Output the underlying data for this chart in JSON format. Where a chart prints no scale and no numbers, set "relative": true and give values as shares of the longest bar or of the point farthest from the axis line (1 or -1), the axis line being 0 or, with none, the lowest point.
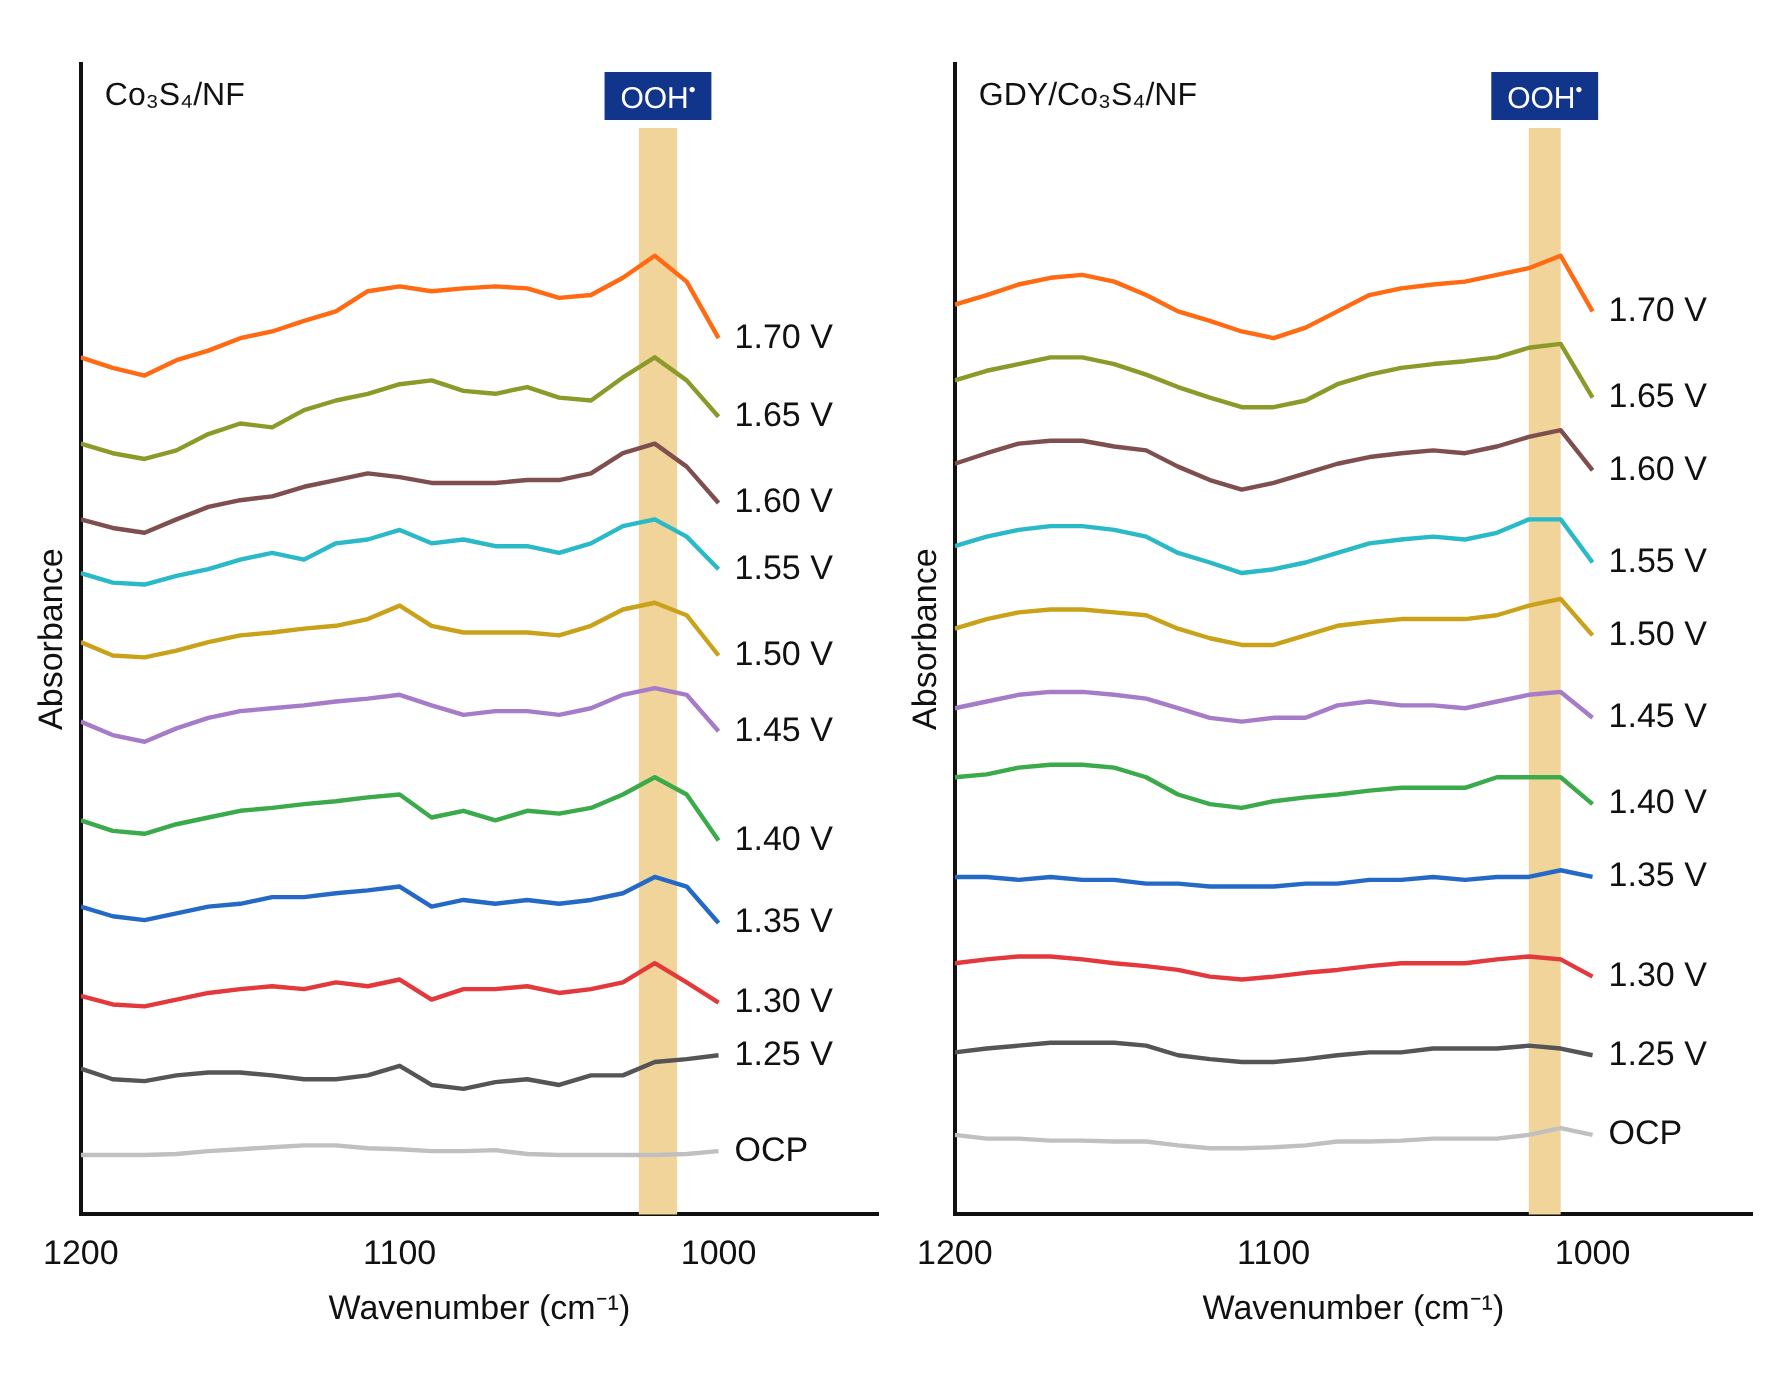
{
  "chart_data": [
    {
      "type": "line",
      "title": "Co₃S₄/NF",
      "xlabel": "Wavenumber (cm⁻¹)",
      "ylabel": "Absorbance",
      "relative": true,
      "xlim": [
        1200,
        950
      ],
      "xticks": [
        1200,
        1100,
        1000
      ],
      "grid": false,
      "legend": false,
      "marker": "none",
      "line_style": "solid",
      "bands": [
        {
          "axis": "x",
          "from": 1025,
          "to": 1013,
          "label": "OOH$^{•}$",
          "color": "#f0d49a"
        }
      ],
      "x": [
        1200,
        1190,
        1180,
        1170,
        1160,
        1150,
        1140,
        1130,
        1120,
        1110,
        1100,
        1090,
        1080,
        1070,
        1060,
        1050,
        1040,
        1030,
        1020,
        1010,
        1000
      ],
      "series": [
        {
          "name": "1.70 V",
          "color": "#ff6a13",
          "values": [
            0.894,
            0.883,
            0.875,
            0.891,
            0.901,
            0.914,
            0.921,
            0.932,
            0.942,
            0.963,
            0.968,
            0.963,
            0.966,
            0.968,
            0.966,
            0.956,
            0.959,
            0.977,
            1.0,
            0.973,
            0.914
          ]
        },
        {
          "name": "1.65 V",
          "color": "#8c9a2a",
          "values": [
            0.804,
            0.794,
            0.788,
            0.797,
            0.814,
            0.825,
            0.821,
            0.839,
            0.849,
            0.856,
            0.866,
            0.87,
            0.859,
            0.856,
            0.863,
            0.852,
            0.849,
            0.873,
            0.894,
            0.87,
            0.832
          ]
        },
        {
          "name": "1.60 V",
          "color": "#7f4f4f",
          "values": [
            0.725,
            0.716,
            0.711,
            0.725,
            0.738,
            0.745,
            0.749,
            0.759,
            0.766,
            0.773,
            0.769,
            0.763,
            0.763,
            0.763,
            0.766,
            0.766,
            0.773,
            0.794,
            0.804,
            0.78,
            0.742
          ]
        },
        {
          "name": "1.55 V",
          "color": "#2ab9c6",
          "values": [
            0.669,
            0.659,
            0.657,
            0.666,
            0.673,
            0.683,
            0.69,
            0.683,
            0.7,
            0.704,
            0.714,
            0.7,
            0.704,
            0.697,
            0.697,
            0.69,
            0.7,
            0.718,
            0.725,
            0.707,
            0.673
          ]
        },
        {
          "name": "1.50 V",
          "color": "#c9a21a",
          "values": [
            0.597,
            0.583,
            0.581,
            0.588,
            0.597,
            0.604,
            0.607,
            0.611,
            0.614,
            0.621,
            0.635,
            0.614,
            0.607,
            0.607,
            0.607,
            0.604,
            0.614,
            0.631,
            0.638,
            0.625,
            0.583
          ]
        },
        {
          "name": "1.45 V",
          "color": "#a67cc9",
          "values": [
            0.514,
            0.5,
            0.493,
            0.507,
            0.518,
            0.525,
            0.528,
            0.531,
            0.535,
            0.538,
            0.542,
            0.531,
            0.521,
            0.525,
            0.525,
            0.521,
            0.528,
            0.542,
            0.549,
            0.542,
            0.504
          ]
        },
        {
          "name": "1.40 V",
          "color": "#3aaa4a",
          "values": [
            0.411,
            0.4,
            0.397,
            0.407,
            0.414,
            0.421,
            0.424,
            0.428,
            0.431,
            0.435,
            0.438,
            0.414,
            0.421,
            0.411,
            0.421,
            0.418,
            0.424,
            0.438,
            0.456,
            0.438,
            0.39
          ]
        },
        {
          "name": "1.35 V",
          "color": "#2569c7",
          "values": [
            0.321,
            0.311,
            0.307,
            0.314,
            0.321,
            0.324,
            0.331,
            0.331,
            0.335,
            0.338,
            0.342,
            0.321,
            0.328,
            0.324,
            0.328,
            0.324,
            0.328,
            0.335,
            0.352,
            0.342,
            0.304
          ]
        },
        {
          "name": "1.30 V",
          "color": "#e4393c",
          "values": [
            0.228,
            0.219,
            0.217,
            0.224,
            0.231,
            0.235,
            0.238,
            0.235,
            0.242,
            0.238,
            0.245,
            0.224,
            0.235,
            0.235,
            0.238,
            0.231,
            0.235,
            0.242,
            0.262,
            0.242,
            0.221
          ]
        },
        {
          "name": "1.25 V",
          "color": "#555555",
          "values": [
            0.152,
            0.141,
            0.139,
            0.145,
            0.148,
            0.148,
            0.145,
            0.141,
            0.141,
            0.145,
            0.155,
            0.135,
            0.131,
            0.138,
            0.141,
            0.135,
            0.145,
            0.145,
            0.159,
            0.162,
            0.166
          ]
        },
        {
          "name": "OCP",
          "color": "#c0c0c0",
          "values": [
            0.062,
            0.062,
            0.062,
            0.063,
            0.066,
            0.068,
            0.07,
            0.072,
            0.072,
            0.069,
            0.068,
            0.066,
            0.066,
            0.067,
            0.063,
            0.062,
            0.062,
            0.062,
            0.062,
            0.063,
            0.066
          ]
        }
      ]
    },
    {
      "type": "line",
      "title": "GDY/Co₃S₄/NF",
      "xlabel": "Wavenumber (cm⁻¹)",
      "ylabel": "Absorbance",
      "relative": true,
      "xlim": [
        1200,
        950
      ],
      "xticks": [
        1200,
        1100,
        1000
      ],
      "grid": false,
      "legend": false,
      "marker": "none",
      "line_style": "solid",
      "bands": [
        {
          "axis": "x",
          "from": 1020,
          "to": 1010,
          "label": "OOH$^{•}$",
          "color": "#f0d49a"
        }
      ],
      "x": [
        1200,
        1190,
        1180,
        1170,
        1160,
        1150,
        1140,
        1130,
        1120,
        1110,
        1100,
        1090,
        1080,
        1070,
        1060,
        1050,
        1040,
        1030,
        1020,
        1010,
        1000
      ],
      "series": [
        {
          "name": "1.70 V",
          "color": "#ff6a13",
          "values": [
            0.949,
            0.959,
            0.97,
            0.977,
            0.98,
            0.973,
            0.959,
            0.942,
            0.932,
            0.921,
            0.914,
            0.925,
            0.942,
            0.959,
            0.966,
            0.97,
            0.973,
            0.98,
            0.987,
            1.0,
            0.942
          ]
        },
        {
          "name": "1.65 V",
          "color": "#8c9a2a",
          "values": [
            0.87,
            0.88,
            0.887,
            0.894,
            0.894,
            0.887,
            0.876,
            0.863,
            0.852,
            0.842,
            0.842,
            0.849,
            0.866,
            0.876,
            0.883,
            0.887,
            0.89,
            0.894,
            0.904,
            0.908,
            0.852
          ]
        },
        {
          "name": "1.60 V",
          "color": "#7f4f4f",
          "values": [
            0.783,
            0.794,
            0.804,
            0.807,
            0.807,
            0.801,
            0.797,
            0.78,
            0.766,
            0.756,
            0.763,
            0.773,
            0.783,
            0.79,
            0.794,
            0.797,
            0.794,
            0.801,
            0.811,
            0.818,
            0.776
          ]
        },
        {
          "name": "1.55 V",
          "color": "#2ab9c6",
          "values": [
            0.697,
            0.707,
            0.714,
            0.718,
            0.718,
            0.714,
            0.707,
            0.69,
            0.68,
            0.669,
            0.673,
            0.68,
            0.69,
            0.7,
            0.704,
            0.707,
            0.704,
            0.711,
            0.725,
            0.725,
            0.68
          ]
        },
        {
          "name": "1.50 V",
          "color": "#c9a21a",
          "values": [
            0.611,
            0.621,
            0.628,
            0.631,
            0.631,
            0.628,
            0.625,
            0.611,
            0.601,
            0.594,
            0.594,
            0.604,
            0.614,
            0.618,
            0.621,
            0.621,
            0.621,
            0.625,
            0.635,
            0.642,
            0.604
          ]
        },
        {
          "name": "1.45 V",
          "color": "#a67cc9",
          "values": [
            0.528,
            0.535,
            0.542,
            0.545,
            0.545,
            0.542,
            0.538,
            0.528,
            0.518,
            0.514,
            0.518,
            0.518,
            0.531,
            0.535,
            0.531,
            0.531,
            0.528,
            0.535,
            0.542,
            0.545,
            0.518
          ]
        },
        {
          "name": "1.40 V",
          "color": "#3aaa4a",
          "values": [
            0.456,
            0.459,
            0.466,
            0.469,
            0.469,
            0.466,
            0.456,
            0.438,
            0.428,
            0.424,
            0.431,
            0.435,
            0.438,
            0.442,
            0.445,
            0.445,
            0.445,
            0.456,
            0.456,
            0.456,
            0.428
          ]
        },
        {
          "name": "1.35 V",
          "color": "#2569c7",
          "values": [
            0.352,
            0.352,
            0.349,
            0.352,
            0.349,
            0.349,
            0.345,
            0.345,
            0.342,
            0.342,
            0.342,
            0.345,
            0.345,
            0.349,
            0.349,
            0.352,
            0.349,
            0.352,
            0.352,
            0.359,
            0.352
          ]
        },
        {
          "name": "1.30 V",
          "color": "#e4393c",
          "values": [
            0.262,
            0.266,
            0.269,
            0.269,
            0.266,
            0.262,
            0.259,
            0.255,
            0.248,
            0.245,
            0.248,
            0.252,
            0.255,
            0.259,
            0.262,
            0.262,
            0.262,
            0.266,
            0.269,
            0.266,
            0.248
          ]
        },
        {
          "name": "1.25 V",
          "color": "#555555",
          "values": [
            0.169,
            0.173,
            0.176,
            0.179,
            0.179,
            0.179,
            0.176,
            0.166,
            0.162,
            0.159,
            0.159,
            0.162,
            0.166,
            0.169,
            0.169,
            0.173,
            0.173,
            0.173,
            0.176,
            0.173,
            0.166
          ]
        },
        {
          "name": "OCP",
          "color": "#c0c0c0",
          "values": [
            0.083,
            0.079,
            0.079,
            0.077,
            0.077,
            0.076,
            0.076,
            0.072,
            0.069,
            0.069,
            0.07,
            0.072,
            0.076,
            0.076,
            0.077,
            0.079,
            0.079,
            0.079,
            0.083,
            0.09,
            0.083
          ]
        }
      ]
    }
  ]
}
